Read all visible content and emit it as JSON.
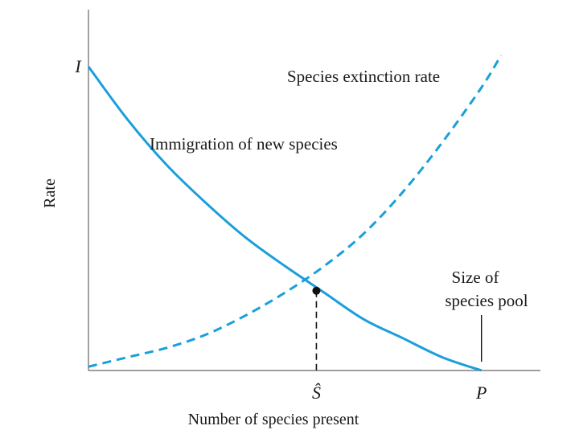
{
  "chart_data": {
    "type": "line",
    "title": "",
    "xlabel": "Number of species present",
    "ylabel": "Rate",
    "xlim": [
      0,
      11.5
    ],
    "ylim": [
      0,
      9.5
    ],
    "grid": false,
    "series": [
      {
        "name": "Immigration of new species",
        "style": "solid",
        "color": "#1a9fdb",
        "x": [
          0,
          1,
          2,
          3,
          4,
          5,
          6,
          7,
          8,
          9,
          10
        ],
        "y": [
          8.0,
          6.6,
          5.4,
          4.4,
          3.5,
          2.75,
          2.05,
          1.35,
          0.85,
          0.35,
          0.0
        ]
      },
      {
        "name": "Species extinction rate",
        "style": "dashed",
        "color": "#1a9fdb",
        "x": [
          0,
          1,
          2,
          3,
          4,
          5,
          6,
          7,
          8,
          9,
          10,
          10.5
        ],
        "y": [
          0.1,
          0.35,
          0.6,
          0.95,
          1.45,
          2.05,
          2.75,
          3.6,
          4.7,
          6.0,
          7.45,
          8.3
        ]
      }
    ],
    "equilibrium": {
      "x": 5.8,
      "y": 2.1,
      "x_label": "Ŝ"
    },
    "x_ticks": [
      {
        "value": 5.8,
        "label": "Ŝ"
      },
      {
        "value": 10,
        "label": "P"
      }
    ],
    "y_ticks": [
      {
        "value": 8.0,
        "label": "I"
      }
    ],
    "annotations": [
      {
        "text": "Species extinction rate",
        "anchor_series": "Species extinction rate"
      },
      {
        "text": "Immigration of new species",
        "anchor_series": "Immigration of new species"
      },
      {
        "text_lines": [
          "Size of",
          "species pool"
        ],
        "points_to_x": 10
      }
    ]
  }
}
